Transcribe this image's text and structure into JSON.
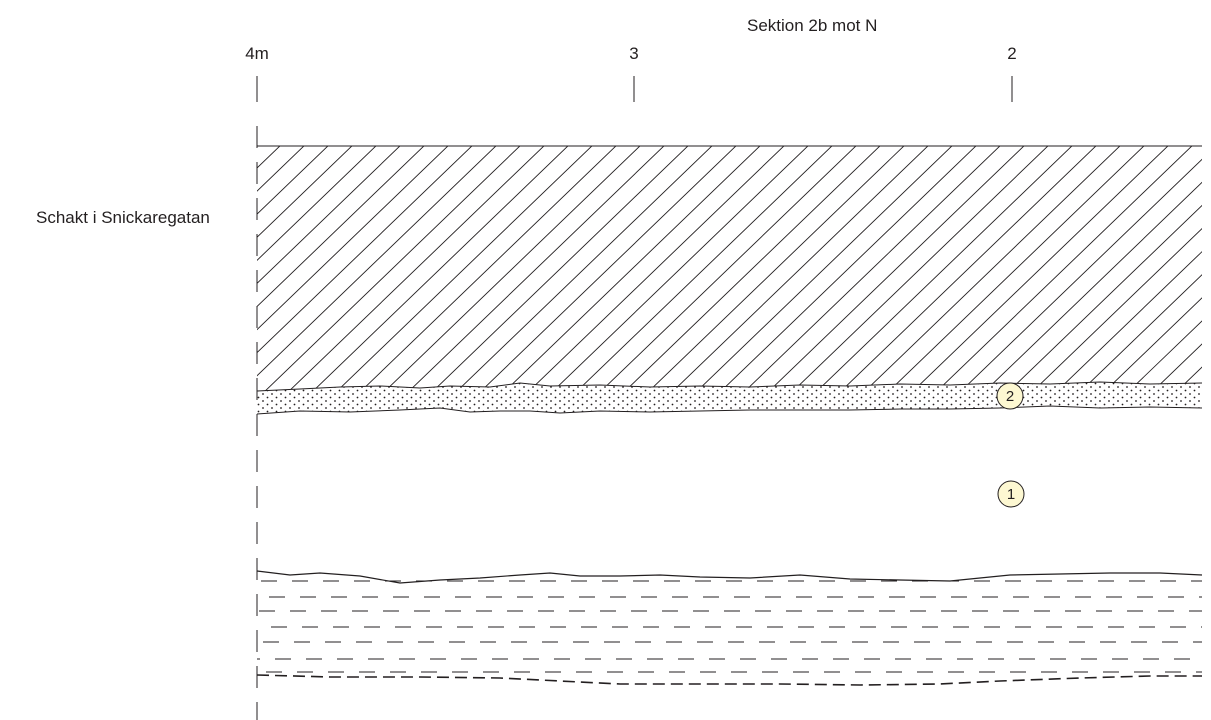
{
  "title": "Sektion 2b mot N",
  "site_label": "Schakt i Snickaregatan",
  "scale_ticks": [
    "4m",
    "3",
    "2"
  ],
  "layers": [
    {
      "id": "2",
      "pattern": "dotted",
      "color": "#fdf8d2"
    },
    {
      "id": "1",
      "pattern": "blank",
      "color": "#fdf8d2"
    }
  ],
  "colors": {
    "line": "#231f20",
    "marker_fill": "#fdf8d2"
  }
}
